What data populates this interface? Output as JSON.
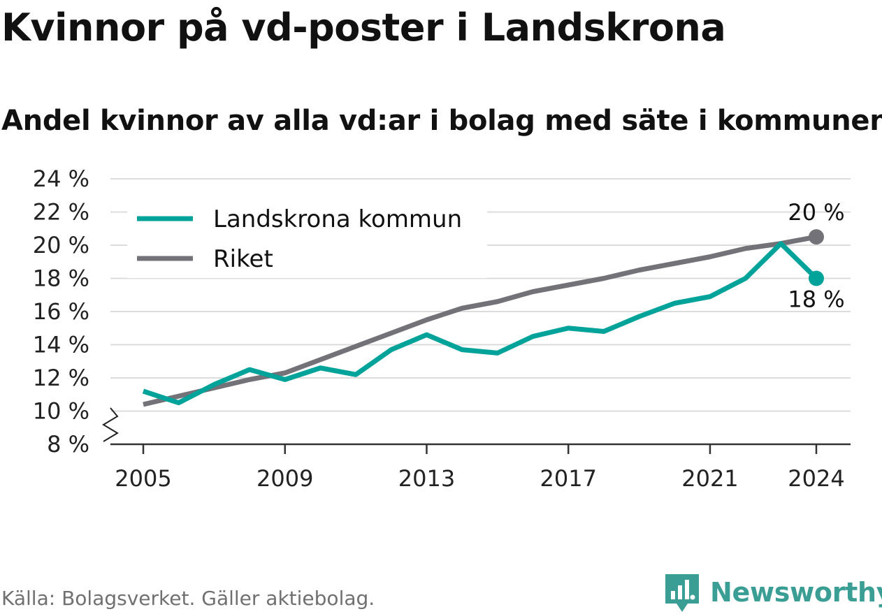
{
  "title": "Kvinnor på vd-poster i Landskrona",
  "subtitle": "Andel kvinnor av alla vd:ar i bolag med säte i kommunen",
  "source": "Källa: Bolagsverket. Gäller aktiebolag.",
  "brand": "Newsworthy",
  "chart_data": {
    "type": "line",
    "x": [
      2005,
      2006,
      2007,
      2008,
      2009,
      2010,
      2011,
      2012,
      2013,
      2014,
      2015,
      2016,
      2017,
      2018,
      2019,
      2020,
      2021,
      2022,
      2023,
      2024
    ],
    "x_ticks": [
      "2005",
      "2009",
      "2013",
      "2017",
      "2021",
      "2024"
    ],
    "y_ticks": [
      "8 %",
      "10 %",
      "12 %",
      "14 %",
      "16 %",
      "18 %",
      "20 %",
      "22 %",
      "24 %"
    ],
    "ylim": [
      8,
      24
    ],
    "grid": true,
    "axis_break": true,
    "legend_position": "top-left",
    "series": [
      {
        "name": "Landskrona kommun",
        "color": "#00a39a",
        "values": [
          11.2,
          10.5,
          11.6,
          12.5,
          11.9,
          12.6,
          12.2,
          13.7,
          14.6,
          13.7,
          13.5,
          14.5,
          15.0,
          14.8,
          15.7,
          16.5,
          16.9,
          18.0,
          20.1,
          18.0
        ],
        "end_label": "18 %"
      },
      {
        "name": "Riket",
        "color": "#737278",
        "values": [
          10.4,
          10.9,
          11.4,
          11.9,
          12.3,
          13.1,
          13.9,
          14.7,
          15.5,
          16.2,
          16.6,
          17.2,
          17.6,
          18.0,
          18.5,
          18.9,
          19.3,
          19.8,
          20.1,
          20.5
        ],
        "end_label": "20 %"
      }
    ]
  }
}
